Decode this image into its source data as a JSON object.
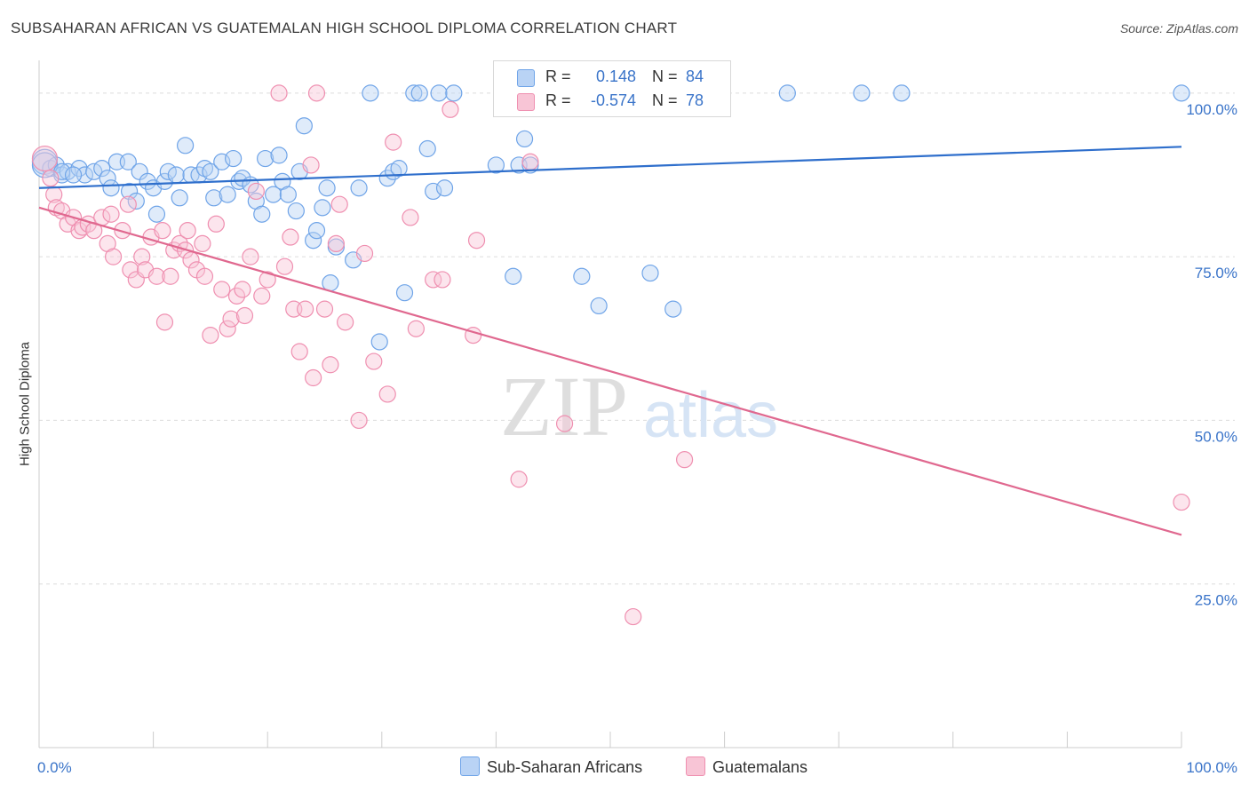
{
  "title": "SUBSAHARAN AFRICAN VS GUATEMALAN HIGH SCHOOL DIPLOMA CORRELATION CHART",
  "source": "Source: ZipAtlas.com",
  "watermark": {
    "zip": "ZIP",
    "atlas": "atlas"
  },
  "legend": {
    "r_label": "R =",
    "n_label": "N =",
    "rows": [
      {
        "name": "Sub-Saharan Africans",
        "r": "0.148",
        "n": "84",
        "color": "#6fa4e8",
        "fill": "#b9d3f5",
        "value_color": "#3a74c9"
      },
      {
        "name": "Guatemalans",
        "r": "-0.574",
        "n": "78",
        "color": "#ef8fb0",
        "fill": "#f8c5d6",
        "value_color": "#3a74c9"
      }
    ]
  },
  "chart_data": {
    "type": "scatter",
    "xlabel": "",
    "ylabel": "High School Diploma",
    "xlim": [
      0,
      100
    ],
    "ylim": [
      0,
      105
    ],
    "x_tick_labels": [
      {
        "value": 0,
        "label": "0.0%"
      },
      {
        "value": 100,
        "label": "100.0%"
      }
    ],
    "y_tick_labels": [
      {
        "value": 25,
        "label": "25.0%"
      },
      {
        "value": 50,
        "label": "50.0%"
      },
      {
        "value": 75,
        "label": "75.0%"
      },
      {
        "value": 100,
        "label": "100.0%"
      }
    ],
    "grid": "horizontal-dashed",
    "legend_position": "top-center",
    "series": [
      {
        "name": "Sub-Saharan Africans",
        "color": "#6fa4e8",
        "fill": "#b9d3f5",
        "trend": {
          "x": [
            0,
            100
          ],
          "y": [
            85.5,
            91.8
          ]
        },
        "points": [
          [
            0.5,
            89.5
          ],
          [
            1.0,
            88.5
          ],
          [
            1.5,
            89.0
          ],
          [
            2.0,
            87.5
          ],
          [
            2.5,
            88.0
          ],
          [
            3.5,
            88.5
          ],
          [
            4.0,
            87.5
          ],
          [
            4.8,
            88.0
          ],
          [
            5.5,
            88.5
          ],
          [
            6.0,
            87.0
          ],
          [
            6.3,
            85.5
          ],
          [
            6.8,
            89.5
          ],
          [
            7.8,
            89.5
          ],
          [
            7.9,
            85.0
          ],
          [
            8.5,
            83.5
          ],
          [
            8.8,
            88.0
          ],
          [
            9.5,
            86.5
          ],
          [
            10.0,
            85.5
          ],
          [
            10.3,
            81.5
          ],
          [
            11.0,
            86.5
          ],
          [
            11.3,
            88.0
          ],
          [
            12.0,
            87.5
          ],
          [
            12.3,
            84.0
          ],
          [
            12.8,
            92.0
          ],
          [
            13.3,
            87.5
          ],
          [
            14.0,
            87.5
          ],
          [
            14.5,
            88.5
          ],
          [
            15.0,
            88.0
          ],
          [
            15.3,
            84.0
          ],
          [
            16.0,
            89.5
          ],
          [
            16.5,
            84.5
          ],
          [
            17.0,
            90.0
          ],
          [
            17.5,
            86.5
          ],
          [
            17.8,
            87.0
          ],
          [
            18.5,
            86.0
          ],
          [
            19.0,
            83.5
          ],
          [
            19.5,
            81.5
          ],
          [
            19.8,
            90.0
          ],
          [
            20.5,
            84.5
          ],
          [
            21.0,
            90.5
          ],
          [
            21.3,
            86.5
          ],
          [
            21.8,
            84.5
          ],
          [
            22.5,
            82.0
          ],
          [
            22.8,
            88.0
          ],
          [
            23.2,
            95.0
          ],
          [
            24.0,
            77.5
          ],
          [
            24.3,
            79.0
          ],
          [
            24.8,
            82.5
          ],
          [
            25.2,
            85.5
          ],
          [
            25.5,
            71.0
          ],
          [
            26.0,
            76.5
          ],
          [
            27.5,
            74.5
          ],
          [
            28.0,
            85.5
          ],
          [
            29.0,
            100.0
          ],
          [
            29.8,
            62.0
          ],
          [
            30.5,
            87.0
          ],
          [
            31.0,
            88.0
          ],
          [
            31.5,
            88.5
          ],
          [
            32.0,
            69.5
          ],
          [
            32.8,
            100.0
          ],
          [
            33.3,
            100.0
          ],
          [
            34.0,
            91.5
          ],
          [
            34.5,
            85.0
          ],
          [
            35.0,
            100.0
          ],
          [
            35.5,
            85.5
          ],
          [
            36.3,
            100.0
          ],
          [
            40.0,
            89.0
          ],
          [
            41.5,
            72.0
          ],
          [
            42.0,
            89.0
          ],
          [
            42.5,
            93.0
          ],
          [
            43.0,
            89.0
          ],
          [
            46.0,
            100.0
          ],
          [
            47.5,
            72.0
          ],
          [
            49.0,
            67.5
          ],
          [
            51.5,
            100.0
          ],
          [
            53.5,
            72.5
          ],
          [
            55.5,
            67.0
          ],
          [
            65.5,
            100.0
          ],
          [
            72.0,
            100.0
          ],
          [
            75.5,
            100.0
          ],
          [
            100.0,
            100.0
          ],
          [
            0.5,
            89.0
          ],
          [
            2.0,
            88.0
          ],
          [
            3.0,
            87.5
          ]
        ]
      },
      {
        "name": "Guatemalans",
        "color": "#ef8fb0",
        "fill": "#f8c5d6",
        "trend": {
          "x": [
            0,
            100
          ],
          "y": [
            82.5,
            32.5
          ]
        },
        "points": [
          [
            0.5,
            90.0
          ],
          [
            1.0,
            87.0
          ],
          [
            1.3,
            84.5
          ],
          [
            1.5,
            82.5
          ],
          [
            2.0,
            82.0
          ],
          [
            2.5,
            80.0
          ],
          [
            3.0,
            81.0
          ],
          [
            3.5,
            79.0
          ],
          [
            3.8,
            79.5
          ],
          [
            4.3,
            80.0
          ],
          [
            4.8,
            79.0
          ],
          [
            5.5,
            81.0
          ],
          [
            6.0,
            77.0
          ],
          [
            6.3,
            81.5
          ],
          [
            6.5,
            75.0
          ],
          [
            7.3,
            79.0
          ],
          [
            7.8,
            83.0
          ],
          [
            8.0,
            73.0
          ],
          [
            8.5,
            71.5
          ],
          [
            9.0,
            75.0
          ],
          [
            9.3,
            73.0
          ],
          [
            9.8,
            78.0
          ],
          [
            10.3,
            72.0
          ],
          [
            10.8,
            79.0
          ],
          [
            11.0,
            65.0
          ],
          [
            11.5,
            72.0
          ],
          [
            11.8,
            76.0
          ],
          [
            12.3,
            77.0
          ],
          [
            12.8,
            76.0
          ],
          [
            13.0,
            79.0
          ],
          [
            13.3,
            74.5
          ],
          [
            13.8,
            73.0
          ],
          [
            14.3,
            77.0
          ],
          [
            14.5,
            72.0
          ],
          [
            15.0,
            63.0
          ],
          [
            15.5,
            80.0
          ],
          [
            16.0,
            70.0
          ],
          [
            16.5,
            64.0
          ],
          [
            16.8,
            65.5
          ],
          [
            17.3,
            69.0
          ],
          [
            17.8,
            70.0
          ],
          [
            18.0,
            66.0
          ],
          [
            18.5,
            75.0
          ],
          [
            19.0,
            85.0
          ],
          [
            19.5,
            69.0
          ],
          [
            20.0,
            71.5
          ],
          [
            21.0,
            100.0
          ],
          [
            21.5,
            73.5
          ],
          [
            22.0,
            78.0
          ],
          [
            22.3,
            67.0
          ],
          [
            22.8,
            60.5
          ],
          [
            23.3,
            67.0
          ],
          [
            23.8,
            89.0
          ],
          [
            24.0,
            56.5
          ],
          [
            24.3,
            100.0
          ],
          [
            25.0,
            67.0
          ],
          [
            25.5,
            58.5
          ],
          [
            26.0,
            77.0
          ],
          [
            26.3,
            83.0
          ],
          [
            26.8,
            65.0
          ],
          [
            28.0,
            50.0
          ],
          [
            28.5,
            75.5
          ],
          [
            29.3,
            59.0
          ],
          [
            30.5,
            54.0
          ],
          [
            31.0,
            92.5
          ],
          [
            32.5,
            81.0
          ],
          [
            33.0,
            64.0
          ],
          [
            34.5,
            71.5
          ],
          [
            35.3,
            71.5
          ],
          [
            36.0,
            97.5
          ],
          [
            38.0,
            63.0
          ],
          [
            38.3,
            77.5
          ],
          [
            42.0,
            41.0
          ],
          [
            43.0,
            89.5
          ],
          [
            46.0,
            49.5
          ],
          [
            52.0,
            20.0
          ],
          [
            56.5,
            44.0
          ],
          [
            100.0,
            37.5
          ]
        ]
      }
    ]
  }
}
